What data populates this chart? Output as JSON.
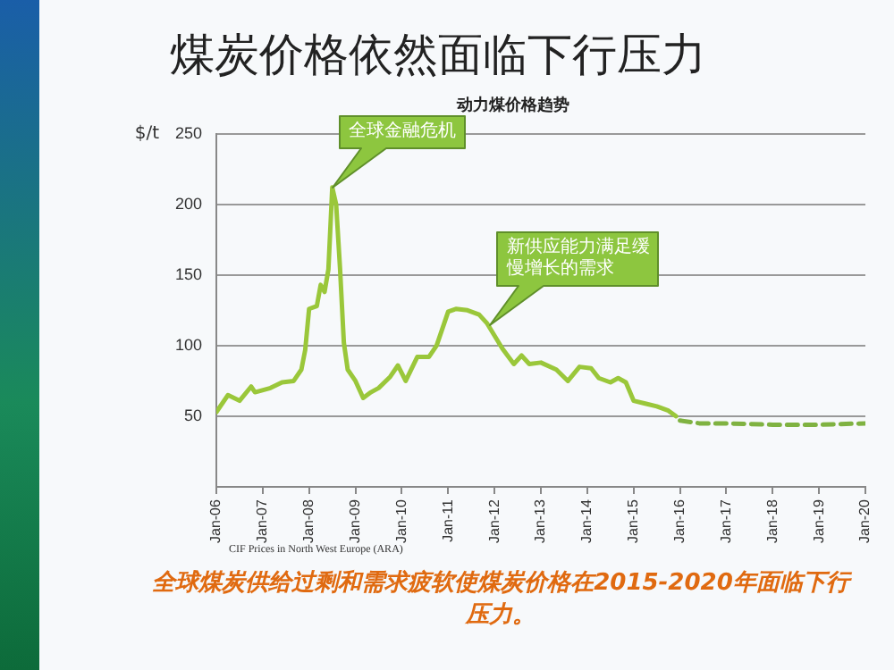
{
  "chart_data": {
    "type": "line",
    "title": "煤炭价格依然面临下行压力",
    "subtitle": "动力煤价格趋势",
    "ylabel": "$/t",
    "series": [
      {
        "color": "#9ac73a",
        "line_style": "solid",
        "x": [
          "2006-01",
          "2006-04",
          "2006-07",
          "2006-10",
          "2006-11",
          "2007-03",
          "2007-06",
          "2007-09",
          "2007-11",
          "2007-12",
          "2008-01",
          "2008-03",
          "2008-04",
          "2008-05",
          "2008-06",
          "2008-07",
          "2008-08",
          "2008-09",
          "2008-10",
          "2008-11",
          "2009-01",
          "2009-03",
          "2009-05",
          "2009-07",
          "2009-10",
          "2009-12",
          "2010-02",
          "2010-05",
          "2010-08",
          "2010-10",
          "2010-12",
          "2011-01",
          "2011-03",
          "2011-06",
          "2011-09",
          "2011-11",
          "2012-01",
          "2012-03",
          "2012-06",
          "2012-08",
          "2012-10",
          "2013-01",
          "2013-05",
          "2013-08",
          "2013-11",
          "2014-02",
          "2014-04",
          "2014-07",
          "2014-09",
          "2014-11",
          "2015-01",
          "2015-04",
          "2015-07",
          "2015-10",
          "2015-12"
        ],
        "values": [
          53,
          65,
          61,
          71,
          67,
          70,
          74,
          75,
          83,
          97,
          126,
          128,
          143,
          138,
          154,
          212,
          200,
          155,
          102,
          83,
          75,
          63,
          67,
          70,
          78,
          86,
          75,
          92,
          92,
          100,
          116,
          124,
          126,
          125,
          122,
          116,
          107,
          98,
          87,
          93,
          87,
          88,
          83,
          75,
          85,
          84,
          77,
          74,
          77,
          74,
          61,
          59,
          57,
          54,
          50
        ]
      },
      {
        "color": "#7fb241",
        "line_style": "dashed",
        "x": [
          "2016-01",
          "2016-06",
          "2017-01",
          "2018-01",
          "2019-01",
          "2020-01"
        ],
        "values": [
          47,
          45,
          45,
          44,
          44,
          45
        ]
      }
    ],
    "xlim": [
      "2006-01",
      "2020-01"
    ],
    "xticks": [
      {
        "value": "2006-01",
        "label": "Jan-06"
      },
      {
        "value": "2007-01",
        "label": "Jan-07"
      },
      {
        "value": "2008-01",
        "label": "Jan-08"
      },
      {
        "value": "2009-01",
        "label": "Jan-09"
      },
      {
        "value": "2010-01",
        "label": "Jan-10"
      },
      {
        "value": "2011-01",
        "label": "Jan-11"
      },
      {
        "value": "2012-01",
        "label": "Jan-12"
      },
      {
        "value": "2013-01",
        "label": "Jan-13"
      },
      {
        "value": "2014-01",
        "label": "Jan-14"
      },
      {
        "value": "2015-01",
        "label": "Jan-15"
      },
      {
        "value": "2016-01",
        "label": "Jan-16"
      },
      {
        "value": "2017-01",
        "label": "Jan-17"
      },
      {
        "value": "2018-01",
        "label": "Jan-18"
      },
      {
        "value": "2019-01",
        "label": "Jan-19"
      },
      {
        "value": "2020-01",
        "label": "Jan-20"
      }
    ],
    "ylim": [
      0,
      250
    ],
    "yticks": [
      {
        "value": 0,
        "label": null
      },
      50,
      100,
      150,
      200,
      250
    ],
    "grid": "y",
    "legend": false,
    "marker": "none",
    "annotations": [
      {
        "text": "全球金融危机",
        "x": "2008-07",
        "y": 212
      },
      {
        "text": "新供应能力满足缓慢增长的需求",
        "x": "2011-12",
        "y": 114
      },
      "CIF Prices in North West Europe (ARA)",
      "全球煤炭供给过剩和需求疲软使煤炭价格在2015-2020年面临下行压力。"
    ]
  }
}
